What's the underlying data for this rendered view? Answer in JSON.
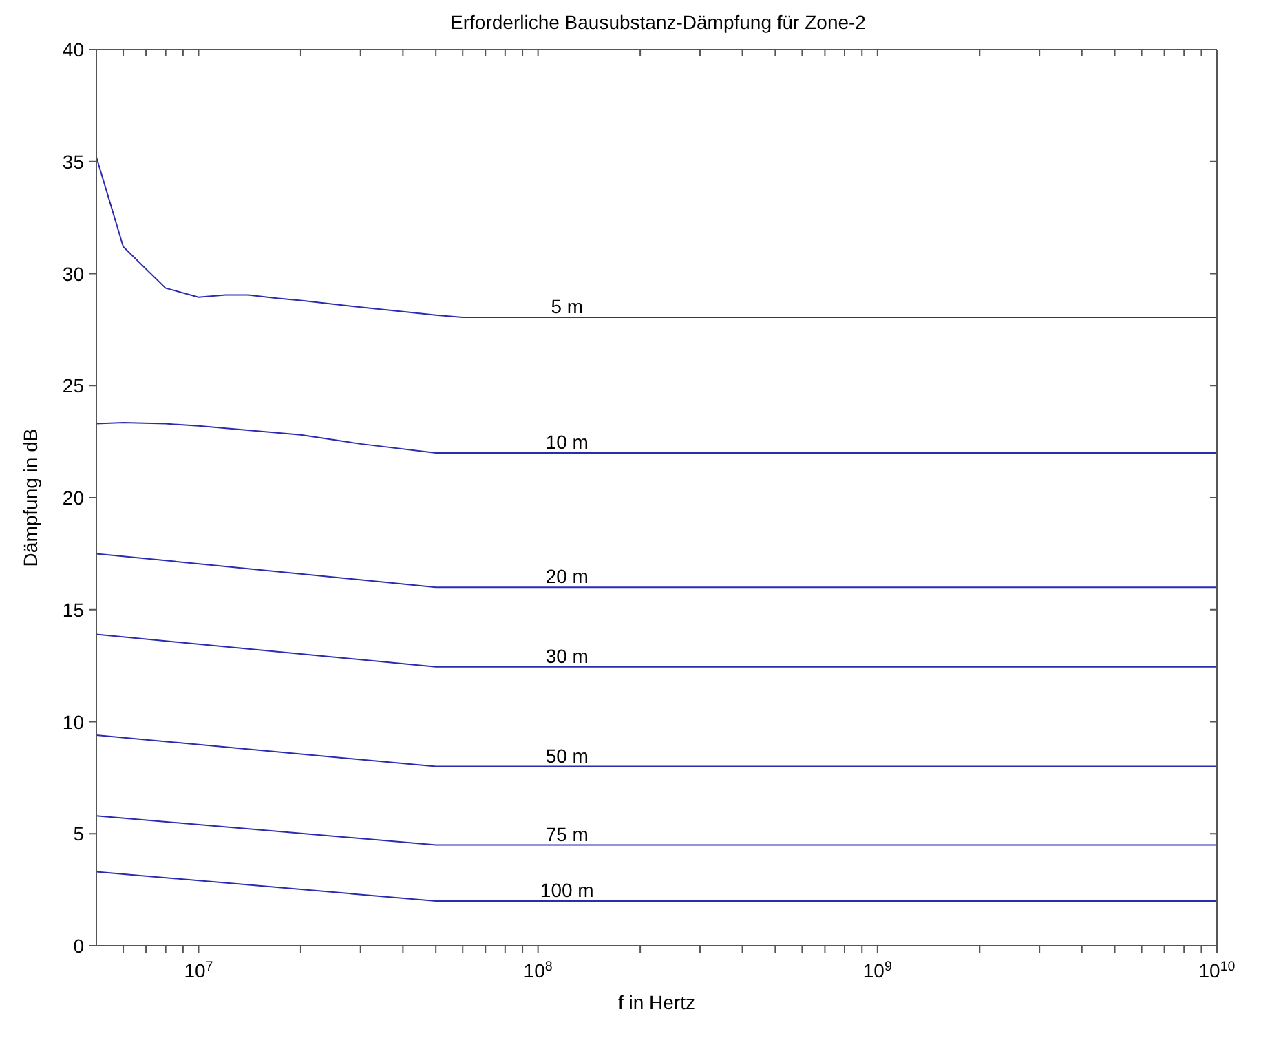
{
  "chart_data": {
    "type": "line",
    "title": "Erforderliche Bausubstanz-Dämpfung für Zone-2",
    "xlabel": "f in Hertz",
    "ylabel": "Dämpfung in dB",
    "log": "x",
    "grid": false,
    "legend": false,
    "line_style": "solid",
    "marker": "none",
    "xlim": [
      5000000,
      10000000000
    ],
    "ylim": [
      0,
      40
    ],
    "xticks": [
      {
        "value": 6000000,
        "label": null
      },
      {
        "value": 7000000,
        "label": null
      },
      {
        "value": 8000000,
        "label": null
      },
      {
        "value": 9000000,
        "label": null
      },
      {
        "value": 10000000,
        "label": "10$^{7}$"
      },
      {
        "value": 20000000,
        "label": null
      },
      {
        "value": 30000000,
        "label": null
      },
      {
        "value": 40000000,
        "label": null
      },
      {
        "value": 50000000,
        "label": null
      },
      {
        "value": 60000000,
        "label": null
      },
      {
        "value": 70000000,
        "label": null
      },
      {
        "value": 80000000,
        "label": null
      },
      {
        "value": 90000000,
        "label": null
      },
      {
        "value": 100000000,
        "label": "10$^{8}$"
      },
      {
        "value": 200000000,
        "label": null
      },
      {
        "value": 300000000,
        "label": null
      },
      {
        "value": 400000000,
        "label": null
      },
      {
        "value": 500000000,
        "label": null
      },
      {
        "value": 600000000,
        "label": null
      },
      {
        "value": 700000000,
        "label": null
      },
      {
        "value": 800000000,
        "label": null
      },
      {
        "value": 900000000,
        "label": null
      },
      {
        "value": 1000000000,
        "label": "10$^{9}$"
      },
      {
        "value": 2000000000,
        "label": null
      },
      {
        "value": 3000000000,
        "label": null
      },
      {
        "value": 4000000000,
        "label": null
      },
      {
        "value": 5000000000,
        "label": null
      },
      {
        "value": 6000000000,
        "label": null
      },
      {
        "value": 7000000000,
        "label": null
      },
      {
        "value": 8000000000,
        "label": null
      },
      {
        "value": 9000000000,
        "label": null
      },
      {
        "value": 10000000000,
        "label": "10$^{10}$"
      }
    ],
    "yticks": [
      0,
      5,
      10,
      15,
      20,
      25,
      30,
      35,
      40
    ],
    "series": [
      {
        "name": "5 m",
        "color": "#2b2bb0",
        "x": [
          5000000,
          6000000,
          8000000,
          10000000,
          12000000,
          14000000,
          17000000,
          20000000,
          30000000,
          50000000,
          60000000,
          10000000000
        ],
        "values": [
          35.2,
          31.2,
          29.35,
          28.95,
          29.05,
          29.05,
          28.9,
          28.8,
          28.5,
          28.15,
          28.05,
          28.05
        ]
      },
      {
        "name": "10 m",
        "color": "#2b2bb0",
        "x": [
          5000000,
          6000000,
          8000000,
          10000000,
          20000000,
          30000000,
          50000000,
          10000000000
        ],
        "values": [
          23.3,
          23.35,
          23.3,
          23.2,
          22.8,
          22.4,
          22.0,
          22.0
        ]
      },
      {
        "name": "20 m",
        "color": "#2b2bb0",
        "x": [
          5000000,
          50000000,
          10000000000
        ],
        "values": [
          17.5,
          16.0,
          16.0
        ]
      },
      {
        "name": "30 m",
        "color": "#2b2bb0",
        "x": [
          5000000,
          50000000,
          10000000000
        ],
        "values": [
          13.9,
          12.45,
          12.45
        ]
      },
      {
        "name": "50 m",
        "color": "#2b2bb0",
        "x": [
          5000000,
          50000000,
          10000000000
        ],
        "values": [
          9.4,
          8.0,
          8.0
        ]
      },
      {
        "name": "75 m",
        "color": "#2b2bb0",
        "x": [
          5000000,
          50000000,
          10000000000
        ],
        "values": [
          5.8,
          4.5,
          4.5
        ]
      },
      {
        "name": "100 m",
        "color": "#2b2bb0",
        "x": [
          5000000,
          50000000,
          10000000000
        ],
        "values": [
          3.3,
          2.0,
          2.0
        ]
      }
    ]
  }
}
